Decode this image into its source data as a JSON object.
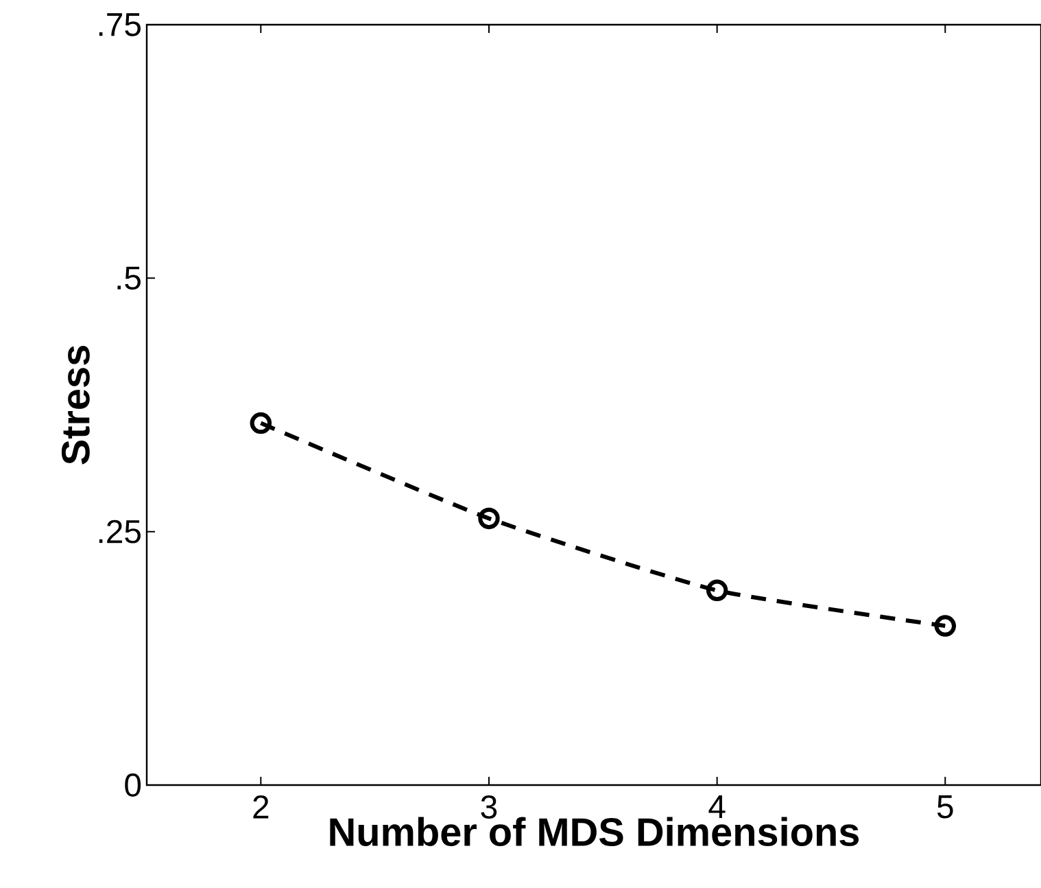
{
  "chart_data": {
    "type": "line",
    "xlabel": "Number of MDS Dimensions",
    "ylabel": "Stress",
    "x": [
      2,
      3,
      4,
      5
    ],
    "series": [
      {
        "color": "#000000",
        "values": [
          0.357,
          0.263,
          0.192,
          0.157
        ]
      }
    ],
    "xlim": [
      1.5,
      5.42
    ],
    "ylim": [
      0,
      0.75
    ],
    "xticks": [
      2,
      3,
      4,
      5
    ],
    "yticks": [
      0,
      {
        "value": 0.25,
        "label": ".25"
      },
      {
        "value": 0.5,
        "label": ".5"
      },
      {
        "value": 0.75,
        "label": ".75"
      }
    ],
    "marker": "circle",
    "line_style": "dashed"
  }
}
